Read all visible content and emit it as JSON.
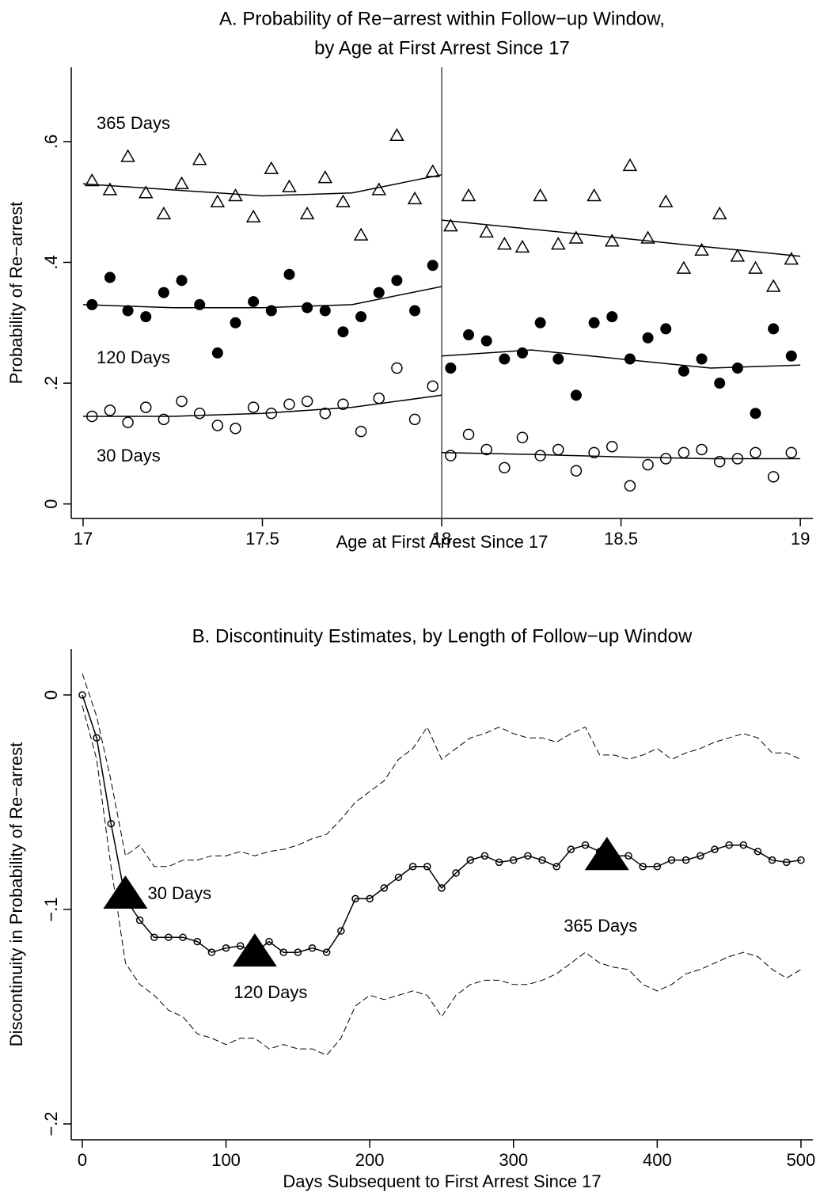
{
  "chart_data": [
    {
      "type": "scatter",
      "title": [
        "A. Probability of Re−arrest within Follow−up Window,",
        "by Age at First Arrest Since 17"
      ],
      "x_label": "Age at First Arrest Since 17",
      "y_label": "Probability of Re−arrest",
      "xlim": [
        16.967,
        19.035
      ],
      "ylim": [
        -0.024,
        0.723
      ],
      "xticks": [
        17,
        17.5,
        18,
        18.5,
        19
      ],
      "yticks": [
        {
          "value": 0,
          "label": "0"
        },
        {
          "value": 0.2,
          "label": ".2"
        },
        {
          "value": 0.4,
          "label": ".4"
        },
        {
          "value": 0.6,
          "label": ".6"
        }
      ],
      "threshold": 18,
      "series": [
        {
          "name": "365 Days",
          "color": "#000000",
          "marker": "triangle",
          "x": [
            17.025,
            17.075,
            17.125,
            17.175,
            17.225,
            17.275,
            17.325,
            17.375,
            17.425,
            17.475,
            17.525,
            17.575,
            17.625,
            17.675,
            17.725,
            17.775,
            17.825,
            17.875,
            17.925,
            17.975,
            18.025,
            18.075,
            18.125,
            18.175,
            18.225,
            18.275,
            18.325,
            18.375,
            18.425,
            18.475,
            18.525,
            18.575,
            18.625,
            18.675,
            18.725,
            18.775,
            18.825,
            18.875,
            18.925,
            18.975
          ],
          "values": [
            0.535,
            0.52,
            0.575,
            0.515,
            0.48,
            0.53,
            0.57,
            0.5,
            0.51,
            0.475,
            0.555,
            0.525,
            0.48,
            0.54,
            0.5,
            0.445,
            0.52,
            0.61,
            0.505,
            0.55,
            0.46,
            0.51,
            0.45,
            0.43,
            0.425,
            0.51,
            0.43,
            0.44,
            0.51,
            0.435,
            0.56,
            0.44,
            0.5,
            0.39,
            0.42,
            0.48,
            0.41,
            0.39,
            0.36,
            0.405
          ]
        },
        {
          "name": "120 Days",
          "color": "#000000",
          "marker": "circle-filled",
          "x": [
            17.025,
            17.075,
            17.125,
            17.175,
            17.225,
            17.275,
            17.325,
            17.375,
            17.425,
            17.475,
            17.525,
            17.575,
            17.625,
            17.675,
            17.725,
            17.775,
            17.825,
            17.875,
            17.925,
            17.975,
            18.025,
            18.075,
            18.125,
            18.175,
            18.225,
            18.275,
            18.325,
            18.375,
            18.425,
            18.475,
            18.525,
            18.575,
            18.625,
            18.675,
            18.725,
            18.775,
            18.825,
            18.875,
            18.925,
            18.975
          ],
          "values": [
            0.33,
            0.375,
            0.32,
            0.31,
            0.35,
            0.37,
            0.33,
            0.25,
            0.3,
            0.335,
            0.32,
            0.38,
            0.325,
            0.32,
            0.285,
            0.31,
            0.35,
            0.37,
            0.32,
            0.395,
            0.225,
            0.28,
            0.27,
            0.24,
            0.25,
            0.3,
            0.24,
            0.18,
            0.3,
            0.31,
            0.24,
            0.275,
            0.29,
            0.22,
            0.24,
            0.2,
            0.225,
            0.15,
            0.29,
            0.245
          ]
        },
        {
          "name": "30 Days",
          "color": "#000000",
          "marker": "circle",
          "x": [
            17.025,
            17.075,
            17.125,
            17.175,
            17.225,
            17.275,
            17.325,
            17.375,
            17.425,
            17.475,
            17.525,
            17.575,
            17.625,
            17.675,
            17.725,
            17.775,
            17.825,
            17.875,
            17.925,
            17.975,
            18.025,
            18.075,
            18.125,
            18.175,
            18.225,
            18.275,
            18.325,
            18.375,
            18.425,
            18.475,
            18.525,
            18.575,
            18.625,
            18.675,
            18.725,
            18.775,
            18.825,
            18.875,
            18.925,
            18.975
          ],
          "values": [
            0.145,
            0.155,
            0.135,
            0.16,
            0.14,
            0.17,
            0.15,
            0.13,
            0.125,
            0.16,
            0.15,
            0.165,
            0.17,
            0.15,
            0.165,
            0.12,
            0.175,
            0.225,
            0.14,
            0.195,
            0.08,
            0.115,
            0.09,
            0.06,
            0.11,
            0.08,
            0.09,
            0.055,
            0.085,
            0.095,
            0.03,
            0.065,
            0.075,
            0.085,
            0.09,
            0.07,
            0.075,
            0.085,
            0.045,
            0.085
          ]
        },
        {
          "color": "#000000",
          "line": true,
          "x": [
            17,
            17.25,
            17.5,
            17.75,
            18,
            18,
            18,
            18.25,
            18.5,
            18.75,
            19
          ],
          "values": [
            0.53,
            0.52,
            0.51,
            0.515,
            0.545,
            null,
            0.47,
            0.455,
            0.44,
            0.425,
            0.41
          ]
        },
        {
          "color": "#000000",
          "line": true,
          "x": [
            17,
            17.25,
            17.5,
            17.75,
            18,
            18,
            18,
            18.25,
            18.5,
            18.75,
            19
          ],
          "values": [
            0.33,
            0.325,
            0.325,
            0.33,
            0.36,
            null,
            0.245,
            0.255,
            0.24,
            0.225,
            0.23
          ]
        },
        {
          "color": "#000000",
          "line": true,
          "x": [
            17,
            17.25,
            17.5,
            17.75,
            18,
            18,
            18,
            18.25,
            18.5,
            18.75,
            19
          ],
          "values": [
            0.145,
            0.145,
            0.15,
            0.16,
            0.18,
            null,
            0.085,
            0.082,
            0.078,
            0.075,
            0.075
          ]
        }
      ]
    },
    {
      "type": "line",
      "title": [
        "B. Discontinuity Estimates, by Length of Follow−up Window"
      ],
      "x_label": "Days Subsequent to First Arrest Since 17",
      "y_label": "Discontinuity in Probability of Re−arrest",
      "xlim": [
        -7.7,
        508.3
      ],
      "ylim": [
        -0.2074,
        0.0214
      ],
      "xticks": [
        0,
        100,
        200,
        300,
        400,
        500
      ],
      "yticks": [
        {
          "value": -0.2,
          "label": "−.2"
        },
        {
          "value": -0.1,
          "label": "−.1"
        },
        {
          "value": 0,
          "label": "0"
        }
      ],
      "series": [
        {
          "color": "#000000",
          "line": true,
          "marker": "small-circle",
          "x": [
            0,
            10,
            20,
            30,
            40,
            50,
            60,
            70,
            80,
            90,
            100,
            110,
            120,
            130,
            140,
            150,
            160,
            170,
            180,
            190,
            200,
            210,
            220,
            230,
            240,
            250,
            260,
            270,
            280,
            290,
            300,
            310,
            320,
            330,
            340,
            350,
            360,
            370,
            380,
            390,
            400,
            410,
            420,
            430,
            440,
            450,
            460,
            470,
            480,
            490,
            500
          ],
          "values": [
            0,
            -0.02,
            -0.06,
            -0.095,
            -0.105,
            -0.113,
            -0.113,
            -0.113,
            -0.115,
            -0.12,
            -0.118,
            -0.117,
            -0.12,
            -0.115,
            -0.12,
            -0.12,
            -0.118,
            -0.12,
            -0.11,
            -0.095,
            -0.095,
            -0.09,
            -0.085,
            -0.08,
            -0.08,
            -0.09,
            -0.083,
            -0.077,
            -0.075,
            -0.078,
            -0.077,
            -0.075,
            -0.077,
            -0.08,
            -0.072,
            -0.07,
            -0.073,
            -0.075,
            -0.075,
            -0.08,
            -0.08,
            -0.077,
            -0.077,
            -0.075,
            -0.072,
            -0.07,
            -0.07,
            -0.073,
            -0.077,
            -0.078,
            -0.077
          ]
        },
        {
          "color": "#000000",
          "line": true,
          "dash": true,
          "x": [
            0,
            10,
            20,
            30,
            40,
            50,
            60,
            70,
            80,
            90,
            100,
            110,
            120,
            130,
            140,
            150,
            160,
            170,
            180,
            190,
            200,
            210,
            220,
            230,
            240,
            250,
            260,
            270,
            280,
            290,
            300,
            310,
            320,
            330,
            340,
            350,
            360,
            370,
            380,
            390,
            400,
            410,
            420,
            430,
            440,
            450,
            460,
            470,
            480,
            490,
            500
          ],
          "values": [
            0.01,
            -0.01,
            -0.04,
            -0.075,
            -0.07,
            -0.08,
            -0.08,
            -0.077,
            -0.077,
            -0.075,
            -0.075,
            -0.073,
            -0.075,
            -0.073,
            -0.072,
            -0.07,
            -0.067,
            -0.065,
            -0.058,
            -0.05,
            -0.045,
            -0.04,
            -0.03,
            -0.025,
            -0.015,
            -0.03,
            -0.025,
            -0.02,
            -0.018,
            -0.015,
            -0.018,
            -0.02,
            -0.02,
            -0.022,
            -0.018,
            -0.015,
            -0.028,
            -0.028,
            -0.03,
            -0.028,
            -0.025,
            -0.03,
            -0.027,
            -0.025,
            -0.022,
            -0.02,
            -0.018,
            -0.02,
            -0.027,
            -0.027,
            -0.03
          ]
        },
        {
          "color": "#000000",
          "line": true,
          "dash": true,
          "x": [
            0,
            10,
            20,
            30,
            40,
            50,
            60,
            70,
            80,
            90,
            100,
            110,
            120,
            130,
            140,
            150,
            160,
            170,
            180,
            190,
            200,
            210,
            220,
            230,
            240,
            250,
            260,
            270,
            280,
            290,
            300,
            310,
            320,
            330,
            340,
            350,
            360,
            370,
            380,
            390,
            400,
            410,
            420,
            430,
            440,
            450,
            460,
            470,
            480,
            490,
            500
          ],
          "values": [
            -0.005,
            -0.03,
            -0.08,
            -0.125,
            -0.135,
            -0.14,
            -0.147,
            -0.15,
            -0.158,
            -0.16,
            -0.163,
            -0.16,
            -0.16,
            -0.165,
            -0.163,
            -0.165,
            -0.165,
            -0.168,
            -0.16,
            -0.145,
            -0.14,
            -0.142,
            -0.14,
            -0.138,
            -0.14,
            -0.15,
            -0.14,
            -0.135,
            -0.133,
            -0.133,
            -0.135,
            -0.135,
            -0.133,
            -0.13,
            -0.125,
            -0.12,
            -0.125,
            -0.127,
            -0.128,
            -0.135,
            -0.138,
            -0.135,
            -0.13,
            -0.128,
            -0.125,
            -0.122,
            -0.12,
            -0.122,
            -0.128,
            -0.132,
            -0.128
          ]
        },
        {
          "color": "#000000",
          "marker": "big-triangle",
          "x": [
            30,
            120,
            365
          ],
          "values": [
            -0.093,
            -0.12,
            -0.075
          ],
          "labels": [
            "30 Days",
            "120 Days",
            "365 Days"
          ]
        }
      ]
    }
  ]
}
